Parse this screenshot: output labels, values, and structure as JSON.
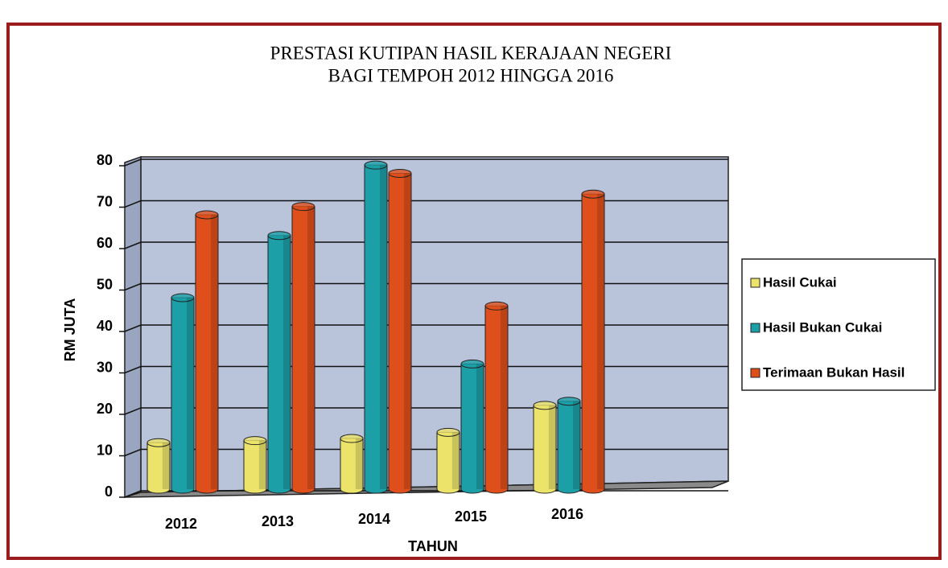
{
  "chart_data": {
    "type": "bar",
    "title": "PRESTASI KUTIPAN HASIL KERAJAAN NEGERI",
    "subtitle": "BAGI TEMPOH 2012 HINGGA 2016",
    "x_label": "TAHUN",
    "y_label": "RM JUTA",
    "categories": [
      "2012",
      "2013",
      "2014",
      "2015",
      "2016"
    ],
    "series": [
      {
        "name": "Hasil Cukai",
        "color": "#ece46a",
        "values": [
          12,
          12.5,
          13,
          14.5,
          21
        ]
      },
      {
        "name": "Hasil Bukan Cukai",
        "color": "#1c9fa6",
        "values": [
          47,
          62,
          79,
          31,
          22
        ]
      },
      {
        "name": "Terimaan Bukan Hasil",
        "color": "#df4f1c",
        "values": [
          67,
          69,
          77,
          45,
          72
        ]
      }
    ],
    "ylim": [
      0,
      80
    ],
    "yticks": [
      0,
      10,
      20,
      30,
      40,
      50,
      60,
      70,
      80
    ],
    "grid": true,
    "legend": "right"
  }
}
